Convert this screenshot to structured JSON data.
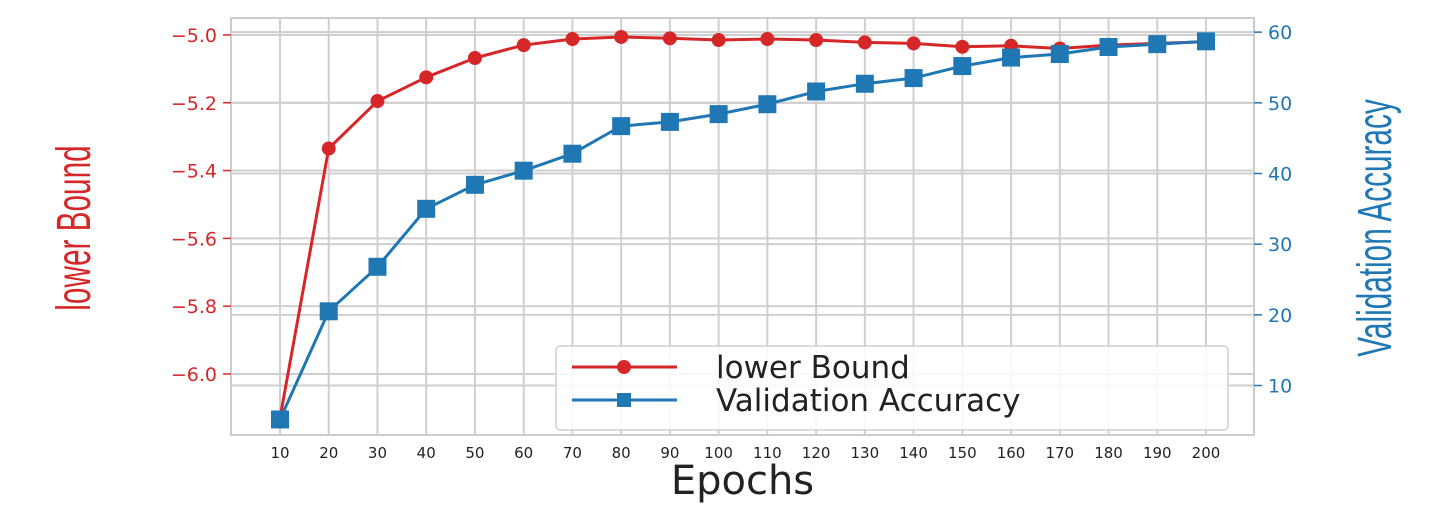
{
  "chart_data": {
    "type": "line",
    "xlabel": "Epochs",
    "ylabel_left": "lower Bound",
    "ylabel_right": "Validation Accuracy",
    "x": [
      10,
      20,
      30,
      40,
      50,
      60,
      70,
      80,
      90,
      100,
      110,
      120,
      130,
      140,
      150,
      160,
      170,
      180,
      190,
      200
    ],
    "x_tick_labels": [
      "10",
      "20",
      "30",
      "40",
      "50",
      "60",
      "70",
      "80",
      "90",
      "100",
      "110",
      "120",
      "130",
      "140",
      "150",
      "160",
      "170",
      "180",
      "190",
      "200"
    ],
    "left_axis": {
      "ylim": [
        -6.18,
        -4.95
      ],
      "ticks": [
        -6.0,
        -5.8,
        -5.6,
        -5.4,
        -5.2,
        -5.0
      ],
      "tick_labels": [
        "−6.0",
        "−5.8",
        "−5.6",
        "−5.4",
        "−5.2",
        "−5.0"
      ],
      "color": "#d62728"
    },
    "right_axis": {
      "ylim": [
        3,
        62
      ],
      "ticks": [
        10,
        20,
        30,
        40,
        50,
        60
      ],
      "tick_labels": [
        "10",
        "20",
        "30",
        "40",
        "50",
        "60"
      ],
      "color": "#1f77b4"
    },
    "series": [
      {
        "name": "lower Bound",
        "axis": "left",
        "color": "#d62728",
        "marker": "circle",
        "values": [
          -6.13,
          -5.335,
          -5.195,
          -5.125,
          -5.068,
          -5.03,
          -5.012,
          -5.006,
          -5.01,
          -5.015,
          -5.012,
          -5.015,
          -5.022,
          -5.025,
          -5.035,
          -5.032,
          -5.04,
          -5.03,
          -5.025,
          -5.02
        ]
      },
      {
        "name": "Validation Accuracy",
        "axis": "right",
        "color": "#1f77b4",
        "marker": "square",
        "values": [
          5.2,
          20.5,
          26.8,
          35.0,
          38.4,
          40.4,
          42.8,
          46.7,
          47.3,
          48.4,
          49.8,
          51.6,
          52.7,
          53.5,
          55.2,
          56.4,
          56.9,
          57.9,
          58.3,
          58.7
        ]
      }
    ],
    "grid": true,
    "legend_position": "lower-right"
  }
}
